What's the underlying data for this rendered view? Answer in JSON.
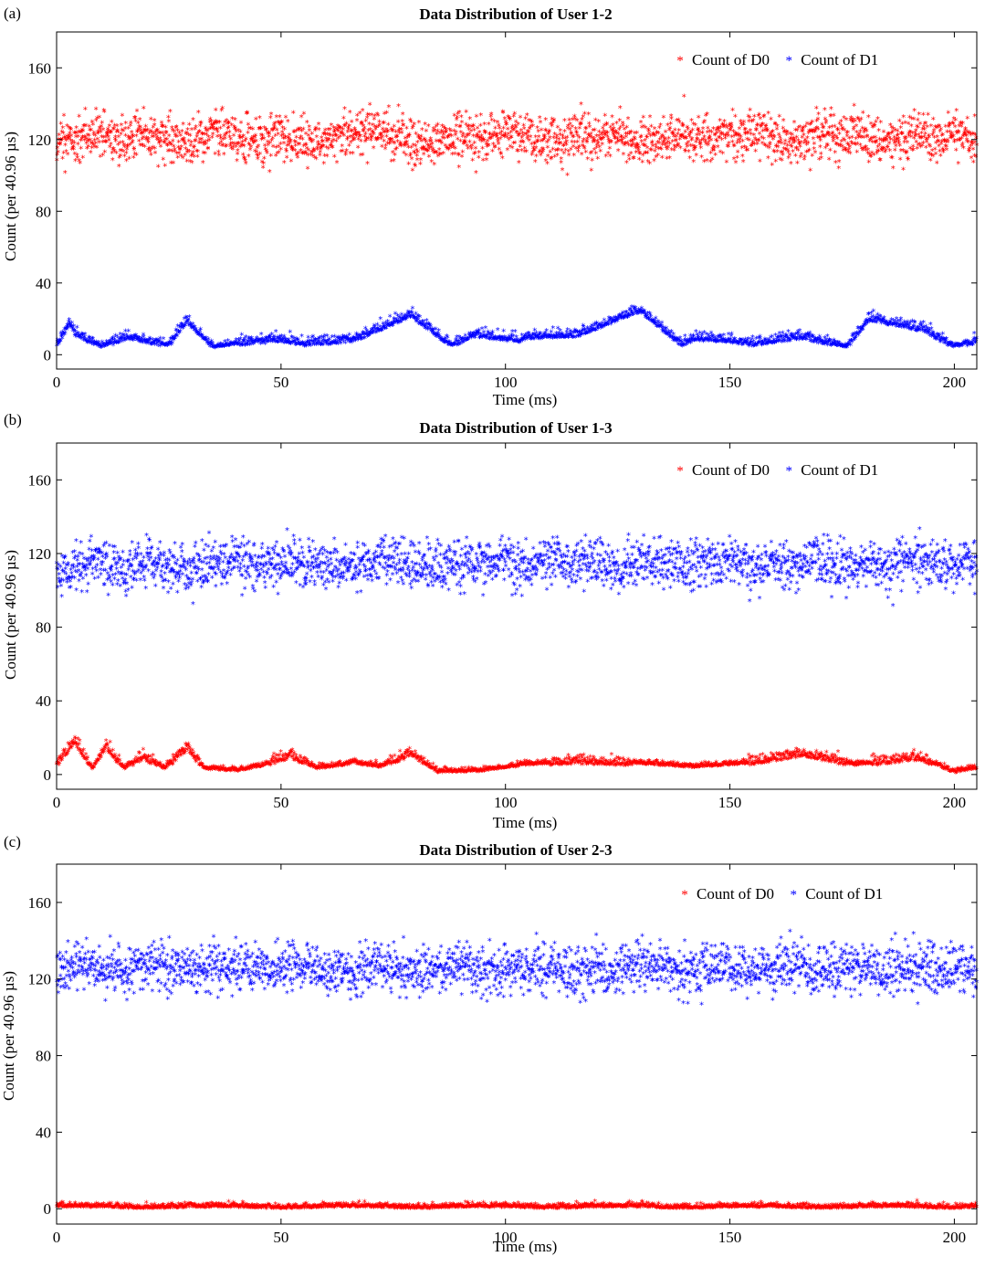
{
  "figure": {
    "panels": [
      {
        "letter": "(a)",
        "chart_data": {
          "type": "scatter",
          "title": "Data Distribution of User 1-2",
          "xlabel": "Time (ms)",
          "ylabel": "Count (per 40.96 µs)",
          "xlim": [
            0,
            205
          ],
          "ylim": [
            -8,
            180
          ],
          "xticks": [
            0,
            50,
            100,
            150,
            200
          ],
          "yticks": [
            0,
            40,
            80,
            120,
            160
          ],
          "legend_position": "top-right",
          "grid": false,
          "series": [
            {
              "name": "Count of D0",
              "color": "#ff0000",
              "marker": "*",
              "x": [
                0,
                5,
                10,
                15,
                20,
                25,
                30,
                35,
                40,
                45,
                50,
                55,
                60,
                65,
                70,
                75,
                80,
                85,
                90,
                95,
                100,
                105,
                110,
                115,
                120,
                125,
                130,
                135,
                140,
                145,
                150,
                155,
                160,
                165,
                170,
                175,
                180,
                185,
                190,
                195,
                200,
                205
              ],
              "y": [
                118,
                122,
                121,
                119,
                123,
                120,
                117,
                124,
                121,
                119,
                122,
                118,
                120,
                123,
                125,
                121,
                116,
                119,
                122,
                120,
                124,
                121,
                118,
                122,
                120,
                123,
                117,
                120,
                122,
                119,
                121,
                124,
                120,
                118,
                123,
                121,
                119,
                117,
                122,
                120,
                121,
                119
              ]
            },
            {
              "name": "Count of D1",
              "color": "#0000ff",
              "marker": "*",
              "x": [
                0,
                3,
                4,
                10,
                16,
                25,
                29,
                35,
                43,
                51,
                55,
                66,
                79,
                88,
                93,
                103,
                105,
                116,
                130,
                139,
                143,
                150,
                155,
                166,
                176,
                181,
                193,
                200,
                204
              ],
              "y": [
                5,
                18,
                12,
                4,
                10,
                5,
                19,
                4,
                7,
                8,
                6,
                8,
                22,
                5,
                11,
                8,
                10,
                11,
                25,
                6,
                9,
                8,
                6,
                10,
                4,
                20,
                14,
                4,
                7
              ]
            }
          ]
        }
      },
      {
        "letter": "(b)",
        "chart_data": {
          "type": "scatter",
          "title": "Data Distribution of User 1-3",
          "xlabel": "Time (ms)",
          "ylabel": "Count (per 40.96 µs)",
          "xlim": [
            0,
            205
          ],
          "ylim": [
            -8,
            180
          ],
          "xticks": [
            0,
            50,
            100,
            150,
            200
          ],
          "yticks": [
            0,
            40,
            80,
            120,
            160
          ],
          "legend_position": "top-right",
          "grid": false,
          "series": [
            {
              "name": "Count of D0",
              "color": "#ff0000",
              "marker": "*",
              "x": [
                0,
                4,
                8,
                11,
                15,
                19,
                24,
                29,
                33,
                40,
                45,
                52,
                58,
                66,
                72,
                79,
                85,
                95,
                104,
                115,
                129,
                142,
                154,
                166,
                178,
                192,
                200,
                204
              ],
              "y": [
                5,
                18,
                3,
                15,
                3,
                9,
                3,
                14,
                3,
                2,
                4,
                10,
                3,
                6,
                4,
                11,
                1,
                2,
                5,
                7,
                6,
                4,
                6,
                11,
                5,
                9,
                1,
                3
              ]
            },
            {
              "name": "Count of D1",
              "color": "#0000ff",
              "marker": "*",
              "x": [
                0,
                5,
                10,
                15,
                20,
                25,
                30,
                35,
                40,
                45,
                50,
                55,
                60,
                65,
                70,
                75,
                80,
                85,
                90,
                95,
                100,
                105,
                110,
                115,
                120,
                125,
                130,
                135,
                140,
                145,
                150,
                155,
                160,
                165,
                170,
                175,
                180,
                185,
                190,
                195,
                200,
                205
              ],
              "y": [
                108,
                114,
                116,
                112,
                118,
                113,
                110,
                114,
                117,
                112,
                116,
                113,
                115,
                111,
                114,
                117,
                112,
                115,
                113,
                116,
                114,
                112,
                117,
                113,
                115,
                111,
                116,
                114,
                112,
                115,
                117,
                113,
                114,
                112,
                116,
                113,
                115,
                111,
                117,
                114,
                113,
                115
              ]
            }
          ]
        }
      },
      {
        "letter": "(c)",
        "chart_data": {
          "type": "scatter",
          "title": "Data Distribution of User 2-3",
          "xlabel": "Time (ms)",
          "ylabel": "Count (per 40.96 µs)",
          "xlim": [
            0,
            205
          ],
          "ylim": [
            -8,
            180
          ],
          "xticks": [
            0,
            50,
            100,
            150,
            200
          ],
          "yticks": [
            0,
            40,
            80,
            120,
            160
          ],
          "legend_position": "top-right",
          "grid": false,
          "series": [
            {
              "name": "Count of D0",
              "color": "#ff0000",
              "marker": "*",
              "x": [
                0,
                10,
                20,
                30,
                40,
                50,
                60,
                70,
                80,
                90,
                100,
                110,
                120,
                130,
                140,
                150,
                160,
                170,
                180,
                190,
                200,
                205
              ],
              "y": [
                1,
                1,
                0,
                1,
                1,
                0,
                1,
                1,
                0,
                1,
                1,
                0,
                1,
                1,
                0,
                1,
                1,
                0,
                1,
                1,
                0,
                1
              ]
            },
            {
              "name": "Count of D1",
              "color": "#0000ff",
              "marker": "*",
              "x": [
                0,
                5,
                10,
                15,
                20,
                25,
                30,
                35,
                40,
                45,
                50,
                55,
                60,
                65,
                70,
                75,
                80,
                85,
                90,
                95,
                100,
                105,
                110,
                115,
                120,
                125,
                130,
                135,
                140,
                145,
                150,
                155,
                160,
                165,
                170,
                175,
                180,
                185,
                190,
                195,
                200,
                205
              ],
              "y": [
                124,
                127,
                125,
                123,
                128,
                126,
                124,
                127,
                125,
                126,
                123,
                128,
                125,
                124,
                127,
                126,
                123,
                125,
                128,
                124,
                126,
                125,
                127,
                123,
                126,
                124,
                128,
                125,
                123,
                127,
                126,
                124,
                125,
                128,
                123,
                126,
                125,
                124,
                127,
                126,
                123,
                125
              ]
            }
          ]
        }
      }
    ]
  }
}
